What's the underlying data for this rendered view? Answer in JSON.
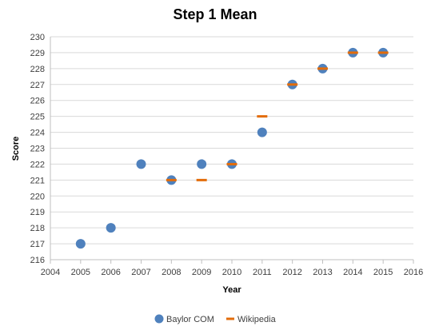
{
  "chart_data": {
    "type": "scatter",
    "title": "Step 1 Mean",
    "xlabel": "Year",
    "ylabel": "Score",
    "xlim": [
      2004,
      2016
    ],
    "ylim": [
      216,
      230
    ],
    "xticks": [
      2004,
      2005,
      2006,
      2007,
      2008,
      2009,
      2010,
      2011,
      2012,
      2013,
      2014,
      2015,
      2016
    ],
    "yticks": [
      216,
      217,
      218,
      219,
      220,
      221,
      222,
      223,
      224,
      225,
      226,
      227,
      228,
      229,
      230
    ],
    "grid": {
      "horizontal": true,
      "vertical": false
    },
    "legend_position": "bottom",
    "series": [
      {
        "name": "Baylor COM",
        "marker": "circle",
        "color": "#4F81BD",
        "x": [
          2005,
          2006,
          2007,
          2008,
          2009,
          2010,
          2011,
          2012,
          2013,
          2014,
          2015
        ],
        "y": [
          217,
          218,
          222,
          221,
          222,
          222,
          224,
          227,
          228,
          229,
          229
        ]
      },
      {
        "name": "Wikipedia",
        "marker": "dash",
        "color": "#E36C0A",
        "x": [
          2008,
          2009,
          2010,
          2011,
          2012,
          2013,
          2014,
          2015
        ],
        "y": [
          221,
          221,
          222,
          225,
          227,
          228,
          229,
          229
        ]
      }
    ]
  }
}
